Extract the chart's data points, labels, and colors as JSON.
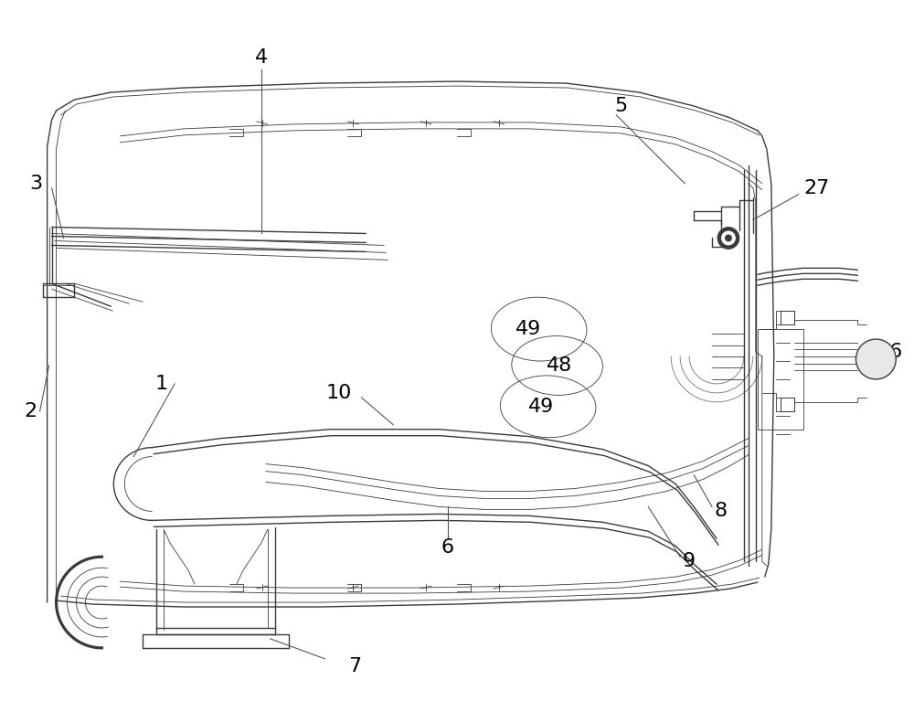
{
  "bg_color": "#ffffff",
  "lc": "#3a3a3a",
  "lw": 1.0,
  "tlw": 0.6,
  "thk": 1.8,
  "fig_w": 10.0,
  "fig_h": 7.79,
  "label_fs": 16,
  "ann_color": "#555555"
}
